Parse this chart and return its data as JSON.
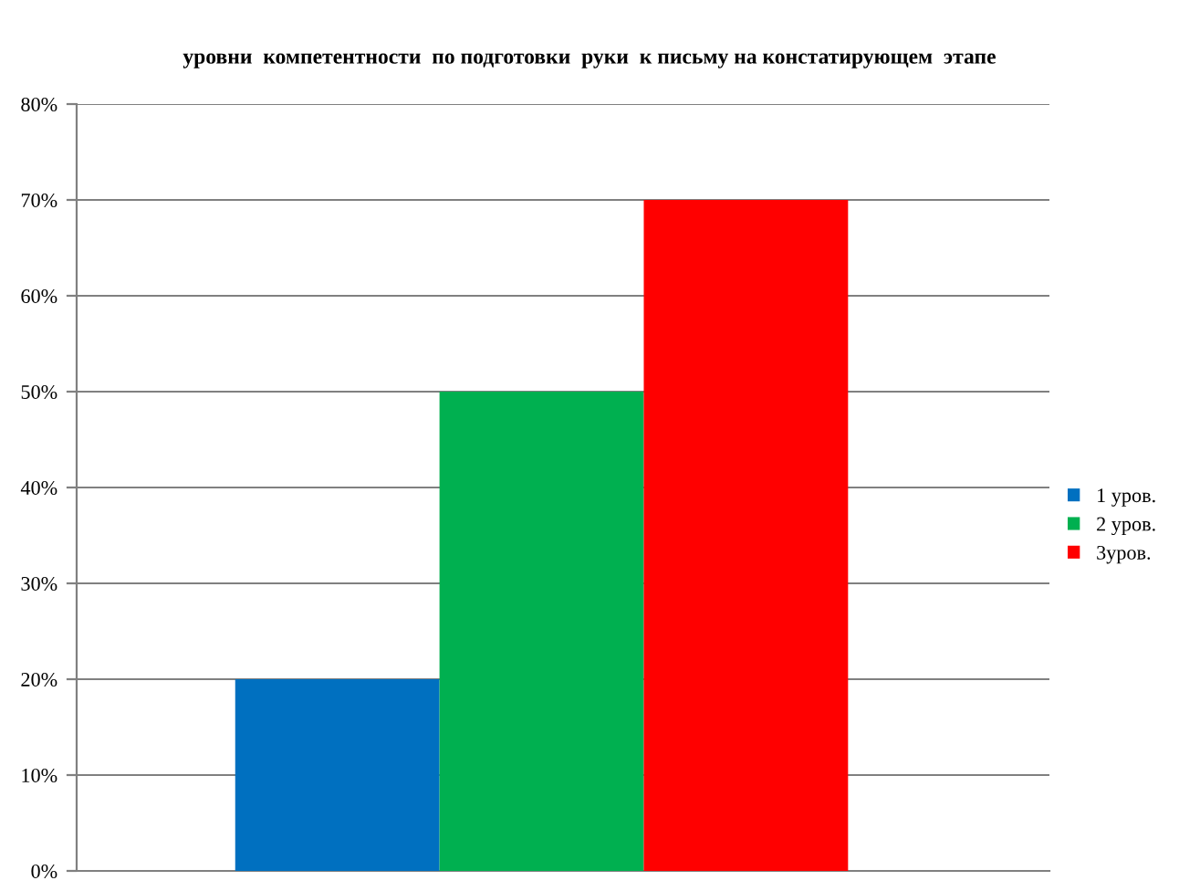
{
  "chart_data": {
    "type": "bar",
    "title": "уровни  компетентности  по подготовки  руки  к письму на констатирующем  этапе",
    "categories": [
      null
    ],
    "series": [
      {
        "name": "1 уров.",
        "color": "#0070c0",
        "values": [
          20
        ]
      },
      {
        "name": "2 уров.",
        "color": "#00b050",
        "values": [
          50
        ]
      },
      {
        "name": "3уров.",
        "color": "#ff0000",
        "values": [
          70
        ]
      }
    ],
    "ylim": [
      0,
      80
    ],
    "yticks": [
      {
        "value": 0,
        "label": "0%"
      },
      {
        "value": 10,
        "label": "10%"
      },
      {
        "value": 20,
        "label": "20%"
      },
      {
        "value": 30,
        "label": "30%"
      },
      {
        "value": 40,
        "label": "40%"
      },
      {
        "value": 50,
        "label": "50%"
      },
      {
        "value": 60,
        "label": "60%"
      },
      {
        "value": 70,
        "label": "70%"
      },
      {
        "value": 80,
        "label": "80%"
      }
    ],
    "grid": "y",
    "legend": "right"
  }
}
